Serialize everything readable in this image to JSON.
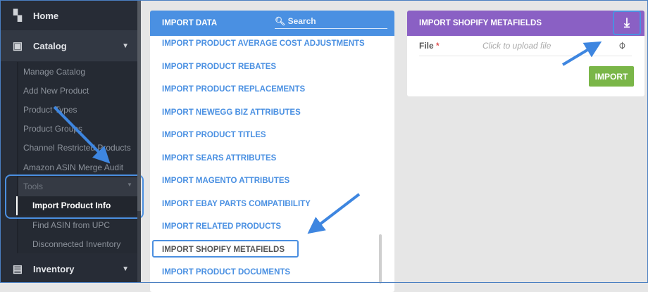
{
  "sidebar": {
    "items": [
      {
        "label": "Home",
        "icon": "dashboard-icon"
      },
      {
        "label": "Catalog",
        "icon": "catalog-icon"
      },
      {
        "label": "Inventory",
        "icon": "inventory-icon"
      }
    ],
    "catalog_sub": [
      "Manage Catalog",
      "Add New Product",
      "Product Types",
      "Product Groups",
      "Channel Restricted Products",
      "Amazon ASIN Merge Audit",
      "Tools"
    ],
    "tools_sub": [
      "Import Product Info",
      "Find ASIN from UPC",
      "Disconnected Inventory"
    ],
    "active": "Import Product Info"
  },
  "import_data": {
    "title": "IMPORT DATA",
    "search_placeholder": "Search",
    "items": [
      "IMPORT PRODUCT AVERAGE COST ADJUSTMENTS",
      "IMPORT PRODUCT REBATES",
      "IMPORT PRODUCT REPLACEMENTS",
      "IMPORT NEWEGG BIZ ATTRIBUTES",
      "IMPORT PRODUCT TITLES",
      "IMPORT SEARS ATTRIBUTES",
      "IMPORT MAGENTO ATTRIBUTES",
      "IMPORT EBAY PARTS COMPATIBILITY",
      "IMPORT RELATED PRODUCTS",
      "IMPORT SHOPIFY METAFIELDS",
      "IMPORT PRODUCT DOCUMENTS"
    ],
    "selected": "IMPORT SHOPIFY METAFIELDS"
  },
  "shopify": {
    "title": "IMPORT SHOPIFY METAFIELDS",
    "file_label": "File",
    "required": "*",
    "file_placeholder": "Click to upload file",
    "import_label": "IMPORT"
  },
  "colors": {
    "blue_header": "#4a90e2",
    "purple_header": "#8a60c4",
    "import_button": "#7ab648",
    "sidebar": "#272c36"
  }
}
